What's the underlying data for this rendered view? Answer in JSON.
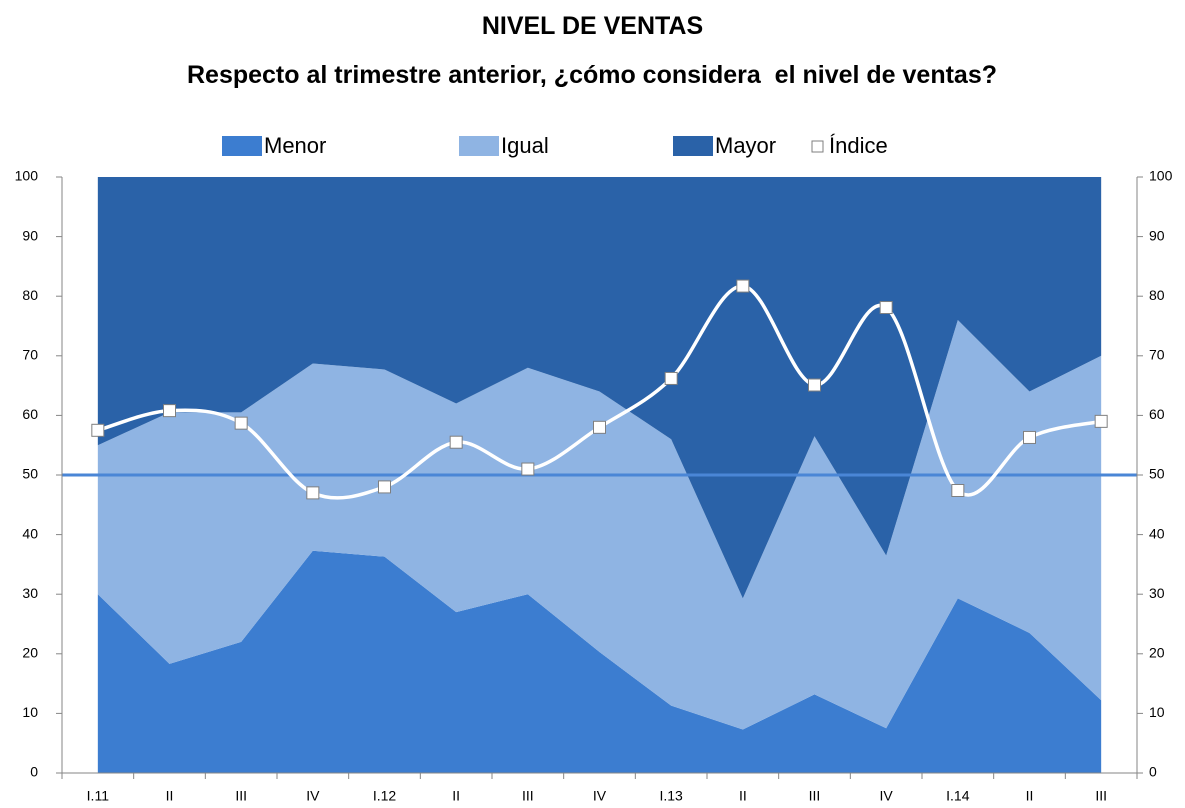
{
  "chart_data": {
    "type": "stacked_area_line",
    "title": "NIVEL DE VENTAS",
    "subtitle": "Respecto al trimestre anterior, ¿cómo considera  el nivel de ventas?",
    "categories": [
      "I.11",
      "II",
      "III",
      "IV",
      "I.12",
      "II",
      "III",
      "IV",
      "I.13",
      "II",
      "III",
      "IV",
      "I.14",
      "II",
      "III"
    ],
    "series": [
      {
        "name": "Menor",
        "color": "#3c7dd0",
        "kind": "area",
        "values": [
          30,
          18.3,
          22,
          37.3,
          36.3,
          27,
          30,
          20.3,
          11.3,
          7.3,
          13.2,
          7.5,
          29.3,
          23.5,
          12.2
        ]
      },
      {
        "name": "Igual",
        "color": "#8fb4e3",
        "kind": "area",
        "values": [
          25,
          42.2,
          38.5,
          31.4,
          31.4,
          35,
          38,
          43.7,
          44.7,
          22,
          43.3,
          29,
          46.7,
          40.5,
          57.8
        ]
      },
      {
        "name": "Mayor",
        "color": "#2a62a8",
        "kind": "area",
        "values": [
          45,
          39.5,
          39.5,
          31.3,
          32.3,
          38,
          32,
          36,
          44,
          70.7,
          43.5,
          63.5,
          24,
          36,
          30
        ]
      },
      {
        "name": "Índice",
        "color": "#ffffff",
        "kind": "line",
        "axis": "y2",
        "smooth": true,
        "values": [
          57.5,
          60.8,
          58.7,
          47,
          48,
          55.5,
          51,
          58,
          66.2,
          81.7,
          65.1,
          78.1,
          47.4,
          56.3,
          59
        ]
      }
    ],
    "reference_line": {
      "value": 50,
      "color": "#4a86d6"
    },
    "ylim": [
      0,
      100
    ],
    "yticks": [
      0,
      10,
      20,
      30,
      40,
      50,
      60,
      70,
      80,
      90,
      100
    ],
    "y2lim": [
      0,
      100
    ],
    "y2ticks": [
      0,
      10,
      20,
      30,
      40,
      50,
      60,
      70,
      80,
      90,
      100
    ],
    "legend": "top"
  }
}
